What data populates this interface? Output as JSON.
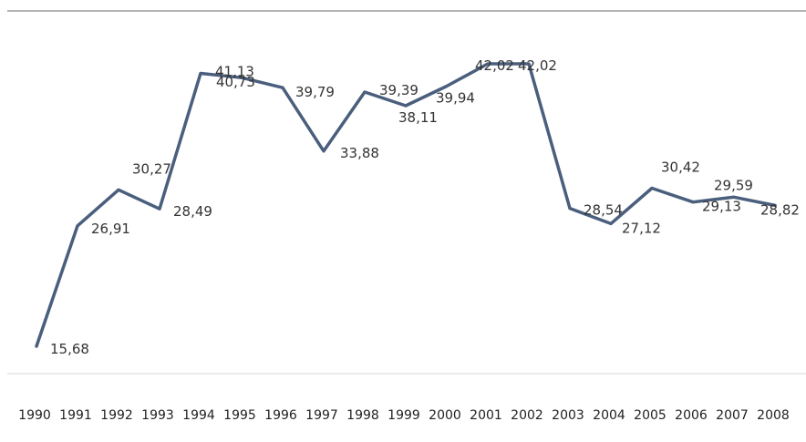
{
  "chart_data": {
    "type": "line",
    "title": "",
    "xlabel": "",
    "ylabel": "",
    "x": [
      "1990",
      "1991",
      "1992",
      "1993",
      "1994",
      "1995",
      "1996",
      "1997",
      "1998",
      "1999",
      "2000",
      "2001",
      "2002",
      "2003",
      "2004",
      "2005",
      "2006",
      "2007",
      "2008"
    ],
    "series": [
      {
        "values": [
          15.68,
          26.91,
          30.27,
          28.49,
          41.13,
          40.73,
          39.79,
          33.88,
          39.39,
          38.11,
          39.94,
          42.02,
          42.02,
          28.54,
          27.12,
          30.42,
          29.13,
          29.59,
          28.82
        ],
        "value_labels": [
          "15,68",
          "26,91",
          "30,27",
          "28,49",
          "41,13",
          "40,73",
          "39,79",
          "33,88",
          "39,39",
          "38,11",
          "39,94",
          "42,02",
          "42,02",
          "28,54",
          "27,12",
          "30,42",
          "29,13",
          "29,59",
          "28,82"
        ]
      }
    ],
    "line_color": "#4a5f7d",
    "data_labels": true,
    "grid": false,
    "legend": "none"
  }
}
